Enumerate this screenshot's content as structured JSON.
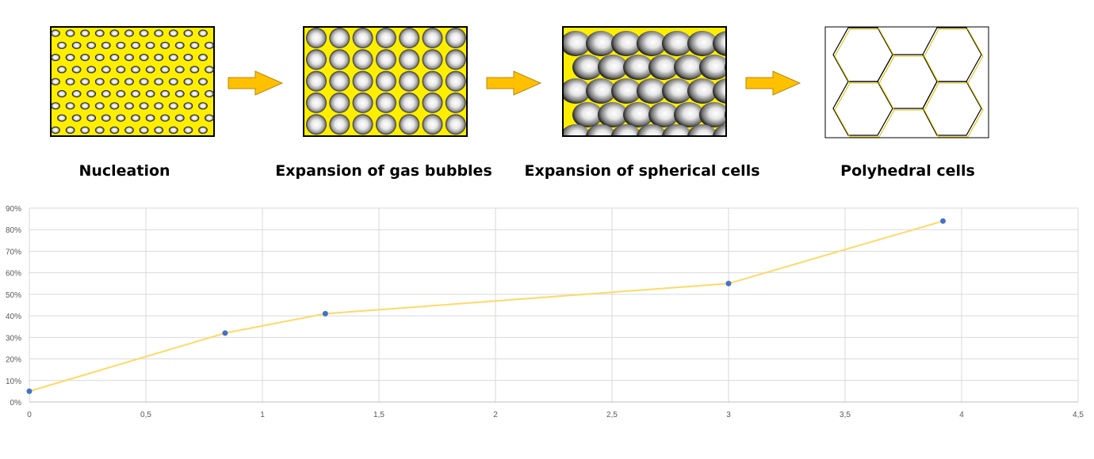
{
  "stages": [
    {
      "label": "Nucleation",
      "icon": "nucleation-diagram"
    },
    {
      "label": "Expansion of gas bubbles",
      "icon": "gas-bubbles-diagram"
    },
    {
      "label": "Expansion of spherical cells",
      "icon": "spherical-cells-diagram"
    },
    {
      "label": "Polyhedral cells",
      "icon": "polyhedral-cells-diagram"
    }
  ],
  "colors": {
    "foam_background": "#ffee00",
    "arrow_fill": "#ffc000",
    "arrow_stroke": "#b8860b",
    "series_line": "#ffd966",
    "marker": "#4472c4",
    "grid": "#d9d9d9"
  },
  "chart_data": {
    "type": "line",
    "title": "",
    "xlabel": "",
    "ylabel": "",
    "xlim": [
      0,
      4.5
    ],
    "ylim": [
      0,
      0.9
    ],
    "x_ticks": [
      "0",
      "0,5",
      "1",
      "1,5",
      "2",
      "2,5",
      "3",
      "3,5",
      "4",
      "4,5"
    ],
    "y_ticks": [
      "0%",
      "10%",
      "20%",
      "30%",
      "40%",
      "50%",
      "60%",
      "70%",
      "80%",
      "90%"
    ],
    "grid": true,
    "legend": "none",
    "series": [
      {
        "x": [
          0,
          0.84,
          1.27,
          3.0,
          3.92
        ],
        "y": [
          0.05,
          0.32,
          0.41,
          0.55,
          0.84
        ]
      }
    ]
  }
}
